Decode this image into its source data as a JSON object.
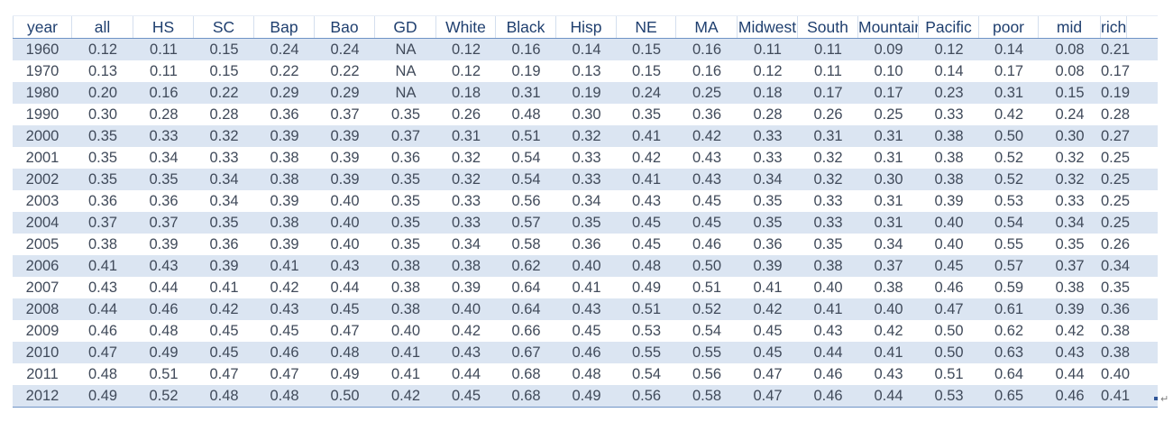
{
  "table": {
    "headers": [
      "year",
      "all",
      "HS",
      "SC",
      "Bap",
      "Bao",
      "GD",
      "White",
      "Black",
      "Hisp",
      "NE",
      "MA",
      "Midwest",
      "South",
      "Mountain",
      "Pacific",
      "poor",
      "mid",
      "rich"
    ],
    "rows": [
      [
        "1960",
        "0.12",
        "0.11",
        "0.15",
        "0.24",
        "0.24",
        "NA",
        "0.12",
        "0.16",
        "0.14",
        "0.15",
        "0.16",
        "0.11",
        "0.11",
        "0.09",
        "0.12",
        "0.14",
        "0.08",
        "0.21"
      ],
      [
        "1970",
        "0.13",
        "0.11",
        "0.15",
        "0.22",
        "0.22",
        "NA",
        "0.12",
        "0.19",
        "0.13",
        "0.15",
        "0.16",
        "0.12",
        "0.11",
        "0.10",
        "0.14",
        "0.17",
        "0.08",
        "0.17"
      ],
      [
        "1980",
        "0.20",
        "0.16",
        "0.22",
        "0.29",
        "0.29",
        "NA",
        "0.18",
        "0.31",
        "0.19",
        "0.24",
        "0.25",
        "0.18",
        "0.17",
        "0.17",
        "0.23",
        "0.31",
        "0.15",
        "0.19"
      ],
      [
        "1990",
        "0.30",
        "0.28",
        "0.28",
        "0.36",
        "0.37",
        "0.35",
        "0.26",
        "0.48",
        "0.30",
        "0.35",
        "0.36",
        "0.28",
        "0.26",
        "0.25",
        "0.33",
        "0.42",
        "0.24",
        "0.28"
      ],
      [
        "2000",
        "0.35",
        "0.33",
        "0.32",
        "0.39",
        "0.39",
        "0.37",
        "0.31",
        "0.51",
        "0.32",
        "0.41",
        "0.42",
        "0.33",
        "0.31",
        "0.31",
        "0.38",
        "0.50",
        "0.30",
        "0.27"
      ],
      [
        "2001",
        "0.35",
        "0.34",
        "0.33",
        "0.38",
        "0.39",
        "0.36",
        "0.32",
        "0.54",
        "0.33",
        "0.42",
        "0.43",
        "0.33",
        "0.32",
        "0.31",
        "0.38",
        "0.52",
        "0.32",
        "0.25"
      ],
      [
        "2002",
        "0.35",
        "0.35",
        "0.34",
        "0.38",
        "0.39",
        "0.35",
        "0.32",
        "0.54",
        "0.33",
        "0.41",
        "0.43",
        "0.34",
        "0.32",
        "0.30",
        "0.38",
        "0.52",
        "0.32",
        "0.25"
      ],
      [
        "2003",
        "0.36",
        "0.36",
        "0.34",
        "0.39",
        "0.40",
        "0.35",
        "0.33",
        "0.56",
        "0.34",
        "0.43",
        "0.45",
        "0.35",
        "0.33",
        "0.31",
        "0.39",
        "0.53",
        "0.33",
        "0.25"
      ],
      [
        "2004",
        "0.37",
        "0.37",
        "0.35",
        "0.38",
        "0.40",
        "0.35",
        "0.33",
        "0.57",
        "0.35",
        "0.45",
        "0.45",
        "0.35",
        "0.33",
        "0.31",
        "0.40",
        "0.54",
        "0.34",
        "0.25"
      ],
      [
        "2005",
        "0.38",
        "0.39",
        "0.36",
        "0.39",
        "0.40",
        "0.35",
        "0.34",
        "0.58",
        "0.36",
        "0.45",
        "0.46",
        "0.36",
        "0.35",
        "0.34",
        "0.40",
        "0.55",
        "0.35",
        "0.26"
      ],
      [
        "2006",
        "0.41",
        "0.43",
        "0.39",
        "0.41",
        "0.43",
        "0.38",
        "0.38",
        "0.62",
        "0.40",
        "0.48",
        "0.50",
        "0.39",
        "0.38",
        "0.37",
        "0.45",
        "0.57",
        "0.37",
        "0.34"
      ],
      [
        "2007",
        "0.43",
        "0.44",
        "0.41",
        "0.42",
        "0.44",
        "0.38",
        "0.39",
        "0.64",
        "0.41",
        "0.49",
        "0.51",
        "0.41",
        "0.40",
        "0.38",
        "0.46",
        "0.59",
        "0.38",
        "0.35"
      ],
      [
        "2008",
        "0.44",
        "0.46",
        "0.42",
        "0.43",
        "0.45",
        "0.38",
        "0.40",
        "0.64",
        "0.43",
        "0.51",
        "0.52",
        "0.42",
        "0.41",
        "0.40",
        "0.47",
        "0.61",
        "0.39",
        "0.36"
      ],
      [
        "2009",
        "0.46",
        "0.48",
        "0.45",
        "0.45",
        "0.47",
        "0.40",
        "0.42",
        "0.66",
        "0.45",
        "0.53",
        "0.54",
        "0.45",
        "0.43",
        "0.42",
        "0.50",
        "0.62",
        "0.42",
        "0.38"
      ],
      [
        "2010",
        "0.47",
        "0.49",
        "0.45",
        "0.46",
        "0.48",
        "0.41",
        "0.43",
        "0.67",
        "0.46",
        "0.55",
        "0.55",
        "0.45",
        "0.44",
        "0.41",
        "0.50",
        "0.63",
        "0.43",
        "0.38"
      ],
      [
        "2011",
        "0.48",
        "0.51",
        "0.47",
        "0.47",
        "0.49",
        "0.41",
        "0.44",
        "0.68",
        "0.48",
        "0.54",
        "0.56",
        "0.47",
        "0.46",
        "0.43",
        "0.51",
        "0.64",
        "0.44",
        "0.40"
      ],
      [
        "2012",
        "0.49",
        "0.52",
        "0.48",
        "0.48",
        "0.50",
        "0.42",
        "0.45",
        "0.68",
        "0.49",
        "0.56",
        "0.58",
        "0.47",
        "0.46",
        "0.44",
        "0.53",
        "0.65",
        "0.46",
        "0.41"
      ]
    ]
  },
  "marks": {
    "paragraph_glyph": "↵"
  },
  "colors": {
    "band": "#dbe5f2",
    "rule": "#6f94c6",
    "header_text": "#1f3f6f",
    "cell_text": "#404a5a"
  }
}
